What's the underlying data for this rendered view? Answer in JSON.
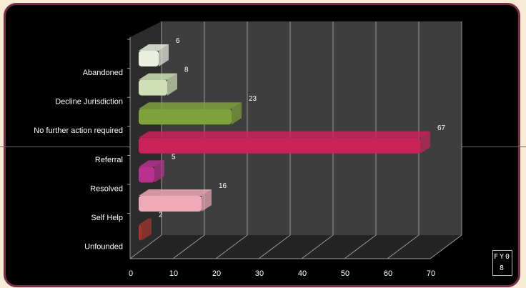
{
  "chart_data": {
    "type": "bar",
    "orientation": "horizontal",
    "categories": [
      "Abandoned",
      "Decline Jurisdiction",
      "No further action required",
      "Referral",
      "Resolved",
      "Self Help",
      "Unfounded"
    ],
    "series": [
      {
        "name": "FY08",
        "values": [
          6,
          8,
          23,
          67,
          5,
          16,
          2
        ]
      }
    ],
    "bar_colors": [
      "#e9eee0",
      "#cfe0b6",
      "#7ea23c",
      "#c9235a",
      "#b8318f",
      "#f0a9b6",
      "#a8352c"
    ],
    "xlim": [
      0,
      70
    ],
    "xticks": [
      0,
      10,
      20,
      30,
      40,
      50,
      60,
      70
    ],
    "grid": true,
    "legend_position": "bottom-right",
    "legend_label": "FY08",
    "background": "#000000",
    "frame_color": "#7b2c4a"
  }
}
